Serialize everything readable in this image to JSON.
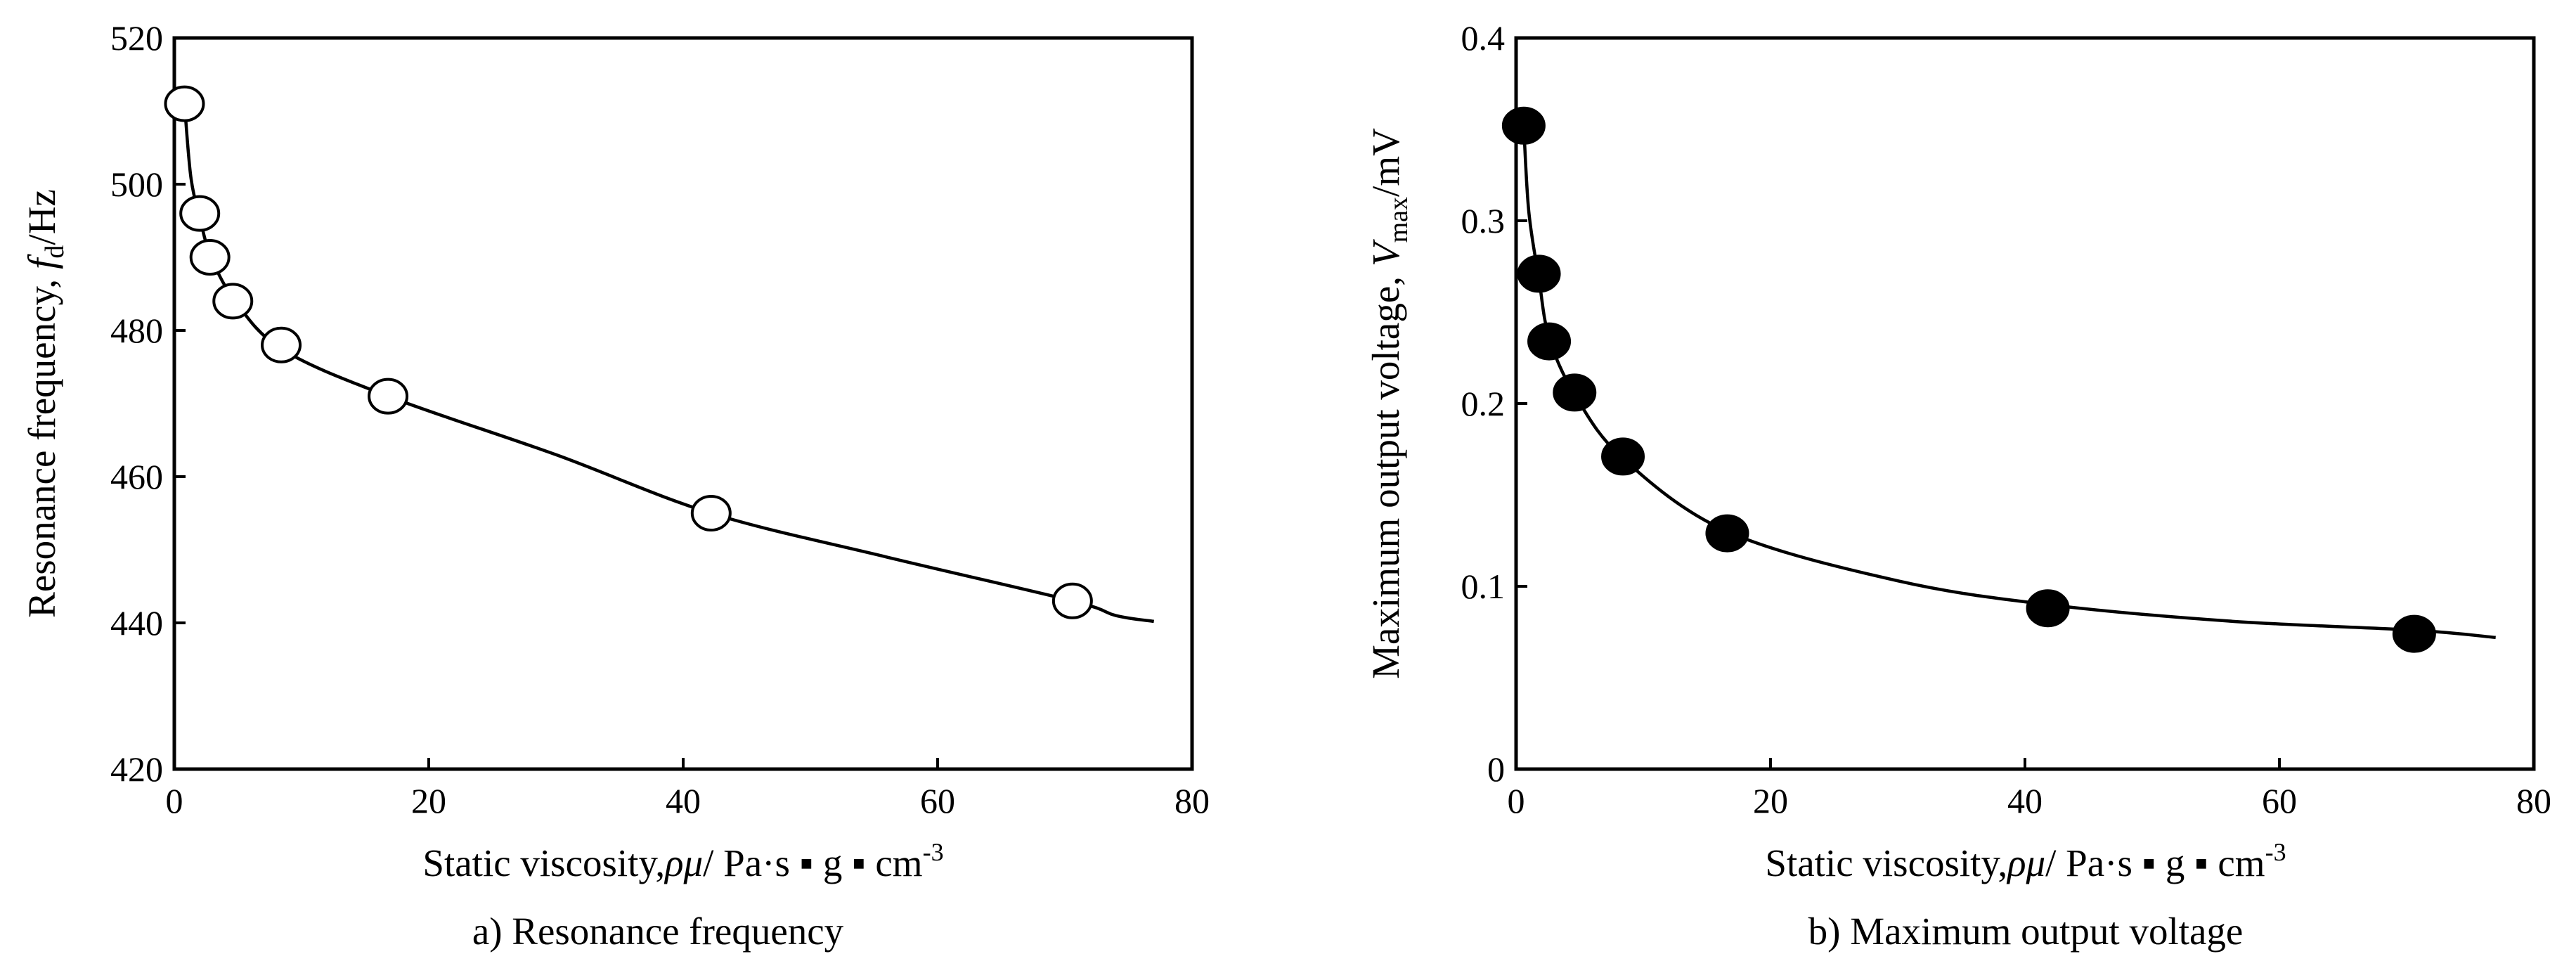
{
  "chart_data": [
    {
      "type": "scatter",
      "caption": "a) Resonance frequency",
      "marker": "open-circle",
      "xlabel": "Static viscosity,",
      "xlabel_symbol": "ρμ",
      "xlabel_units": "/ Pa·s ▪ g ▪ cm",
      "xlabel_exp": "-3",
      "ylabel": "Resonance frequency,",
      "ylabel_symbol": "f",
      "ylabel_sub": "d",
      "ylabel_units": "/Hz",
      "xlim": [
        0,
        80
      ],
      "ylim": [
        420,
        520
      ],
      "xticks": [
        0,
        20,
        40,
        60,
        80
      ],
      "yticks": [
        420,
        440,
        460,
        480,
        500,
        520
      ],
      "x": [
        0.8,
        2.0,
        2.8,
        4.6,
        8.4,
        16.8,
        42.2,
        70.6
      ],
      "y": [
        511,
        496,
        490,
        484,
        478,
        471,
        455,
        443
      ],
      "curve_x": [
        0.8,
        1.3,
        2.0,
        2.8,
        4.6,
        8.4,
        16.8,
        30,
        42.2,
        56,
        70.6,
        74,
        77
      ],
      "curve_y": [
        511,
        501,
        495.5,
        490.5,
        484.5,
        477.5,
        471,
        463,
        455,
        449,
        443,
        441,
        440.2
      ]
    },
    {
      "type": "scatter",
      "caption": "b) Maximum  output voltage",
      "marker": "filled-circle",
      "xlabel": "Static viscosity,",
      "xlabel_symbol": "ρμ",
      "xlabel_units": "/ Pa·s ▪ g ▪ cm",
      "xlabel_exp": "-3",
      "ylabel": "Maximum  output voltage,",
      "ylabel_symbol": "V",
      "ylabel_sub": "max",
      "ylabel_units": "/mV",
      "xlim": [
        0,
        80
      ],
      "ylim": [
        0,
        0.4
      ],
      "xticks": [
        0,
        20,
        40,
        60,
        80
      ],
      "yticks": [
        0,
        0.1,
        0.2,
        0.3,
        0.4
      ],
      "ytick_labels": [
        "0",
        "0.1",
        "0.2",
        "0.3",
        "0.4"
      ],
      "x": [
        0.6,
        1.8,
        2.6,
        4.6,
        8.4,
        16.6,
        41.8,
        70.6
      ],
      "y": [
        0.352,
        0.271,
        0.234,
        0.206,
        0.171,
        0.129,
        0.088,
        0.074
      ],
      "curve_x": [
        0.6,
        1.0,
        1.8,
        2.6,
        4.6,
        8.4,
        16.6,
        30,
        41.8,
        56,
        70.6,
        77
      ],
      "curve_y": [
        0.352,
        0.305,
        0.268,
        0.236,
        0.205,
        0.17,
        0.13,
        0.103,
        0.09,
        0.081,
        0.076,
        0.072
      ]
    }
  ]
}
